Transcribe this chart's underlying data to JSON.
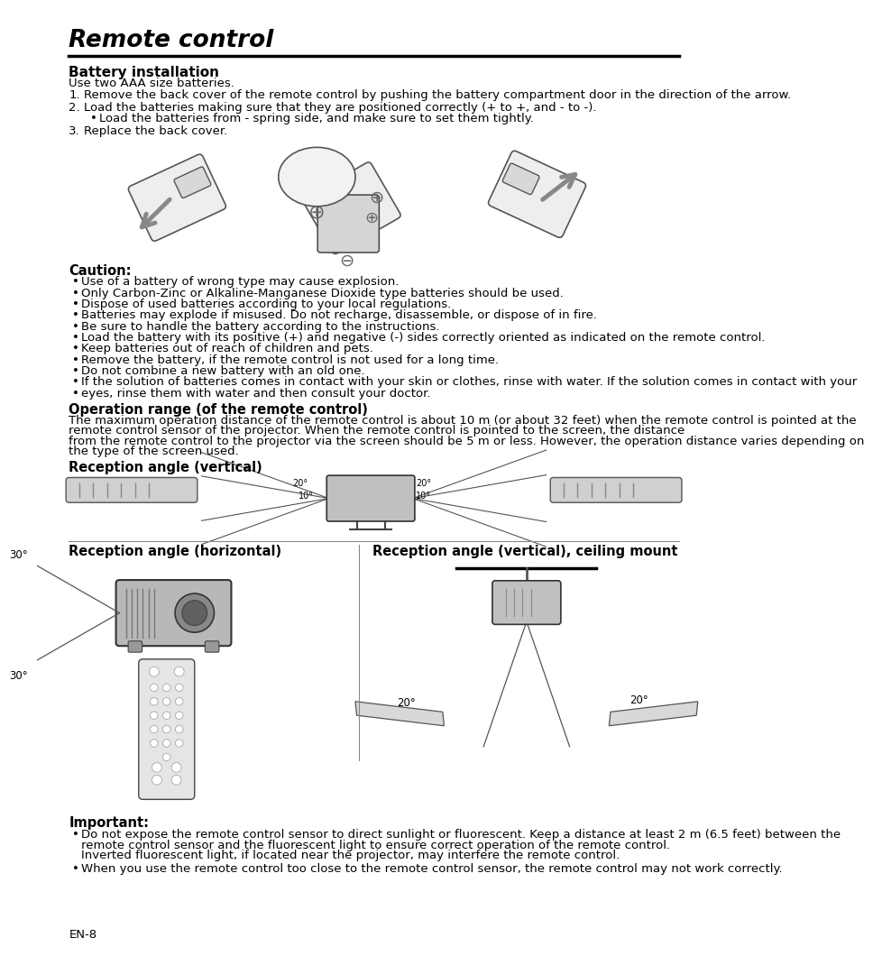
{
  "title": "Remote control",
  "bg_color": "#ffffff",
  "ML": 45,
  "MR": 918,
  "sections": {
    "battery_installation": {
      "heading": "Battery installation",
      "intro": "Use two AAA size batteries.",
      "steps": [
        "Remove the back cover of the remote control by pushing the battery compartment door in the direction of the arrow.",
        "Load the batteries making sure that they are positioned correctly (+ to +, and - to -).",
        "Replace the back cover."
      ],
      "sub_bullet": "Load the batteries from - spring side, and make sure to set them tightly."
    },
    "caution": {
      "heading": "Caution:",
      "bullets": [
        "Use of a battery of wrong type may cause explosion.",
        "Only Carbon-Zinc or Alkaline-Manganese Dioxide type batteries should be used.",
        "Dispose of used batteries according to your local regulations.",
        "Batteries may explode if misused. Do not recharge, disassemble, or dispose of in fire.",
        "Be sure to handle the battery according to the instructions.",
        "Load the battery with its positive (+) and negative (-) sides correctly oriented as indicated on the remote control.",
        "Keep batteries out of reach of children and pets.",
        "Remove the battery, if the remote control is not used for a long time.",
        "Do not combine a new battery with an old one.",
        "If the solution of batteries comes in contact with your skin or clothes, rinse with water. If the solution comes in contact with your",
        "eyes, rinse them with water and then consult your doctor."
      ]
    },
    "operation_range": {
      "heading": "Operation range (of the remote control)",
      "lines": [
        "The maximum operation distance of the remote control is about 10 m (or about 32 feet) when the remote control is pointed at the",
        "remote control sensor of the projector. When the remote control is pointed to the screen, the distance",
        "from the remote control to the projector via the screen should be 5 m or less. However, the operation distance varies depending on",
        "the type of the screen used."
      ]
    },
    "reception_vertical": {
      "heading": "Reception angle (vertical)"
    },
    "reception_horizontal": {
      "heading": "Reception angle (horizontal)"
    },
    "reception_ceiling": {
      "heading": "Reception angle (vertical), ceiling mount"
    },
    "important": {
      "heading": "Important:",
      "bullets": [
        "Do not expose the remote control sensor to direct sunlight or fluorescent. Keep a distance at least 2 m (6.5 feet) between the",
        "remote control sensor and the fluorescent light to ensure correct operation of the remote control.",
        "Inverted fluorescent light, if located near the projector, may interfere the remote control.",
        "When you use the remote control too close to the remote control sensor, the remote control may not work correctly."
      ]
    }
  },
  "page_number": "EN-8"
}
